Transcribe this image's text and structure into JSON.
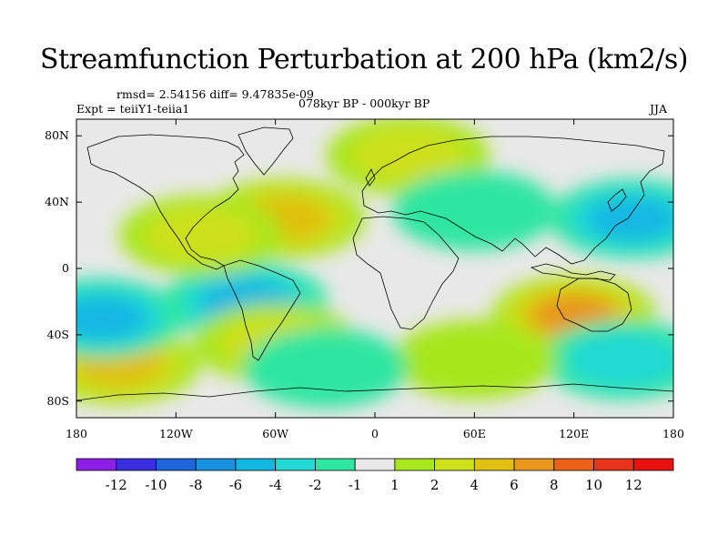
{
  "map": {
    "title": "Streamfunction Perturbation at 200 hPa (km2/s)",
    "stats": "rmsd= 2.54156 diff= 9.47835e-09",
    "experiment": "Expt = teiiY1-teiia1",
    "period": "078kyr BP - 000kyr BP",
    "season": "JJA",
    "lon_ticks": [
      "180",
      "120W",
      "60W",
      "0",
      "60E",
      "120E",
      "180"
    ],
    "lat_ticks": [
      "80N",
      "40N",
      "0",
      "40S",
      "80S"
    ],
    "colorbar": {
      "levels": [
        "-12",
        "-10",
        "-8",
        "-6",
        "-4",
        "-2",
        "-1",
        "1",
        "2",
        "4",
        "6",
        "8",
        "10",
        "12"
      ],
      "colors": [
        "#8c1ee8",
        "#3a2ee0",
        "#1f66dc",
        "#1a90e0",
        "#12b8e2",
        "#24d9d4",
        "#2fe6a0",
        "#e8e8e8",
        "#a8e61e",
        "#cde01a",
        "#e0c010",
        "#e8961c",
        "#ec6218",
        "#e8341c",
        "#e81010"
      ]
    },
    "anomalies": [
      {
        "lon": -155,
        "lat": -58,
        "value": 6
      },
      {
        "lon": -165,
        "lat": -30,
        "value": -5
      },
      {
        "lon": -78,
        "lat": -20,
        "value": -6
      },
      {
        "lon": -55,
        "lat": 30,
        "value": 5
      },
      {
        "lon": -105,
        "lat": 20,
        "value": 3
      },
      {
        "lon": 120,
        "lat": -28,
        "value": 8
      },
      {
        "lon": 155,
        "lat": 30,
        "value": -6
      },
      {
        "lon": 20,
        "lat": 68,
        "value": 3
      },
      {
        "lon": -60,
        "lat": -45,
        "value": 3
      },
      {
        "lon": 150,
        "lat": -55,
        "value": -3
      },
      {
        "lon": 60,
        "lat": -55,
        "value": 2
      },
      {
        "lon": -30,
        "lat": -60,
        "value": -2
      },
      {
        "lon": 60,
        "lat": 35,
        "value": -2
      }
    ]
  }
}
